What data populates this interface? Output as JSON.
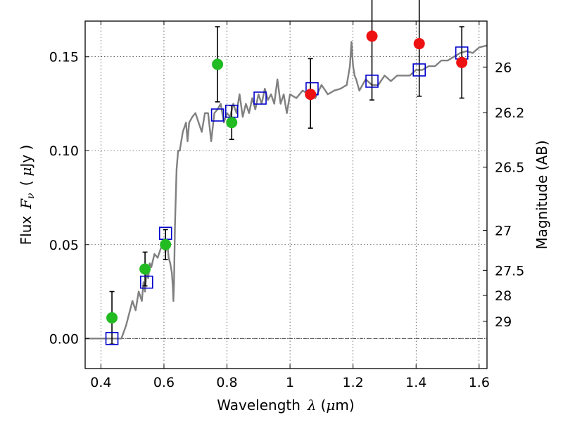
{
  "chart_data": {
    "type": "scatter",
    "title": "",
    "xlabel": {
      "text": "Wavelength",
      "symbol": "λ",
      "unit_open": "(",
      "unit_mu": "μ",
      "unit_rest": "m)"
    },
    "ylabel": {
      "text": "Flux",
      "symbol": "F",
      "subscript": "ν",
      "unit_open": "(",
      "unit_mu": "μ",
      "unit_rest": "Jy )"
    },
    "y2label": "Magnitude (AB)",
    "xlim": [
      0.35,
      1.625
    ],
    "ylim": [
      -0.016,
      0.169
    ],
    "x_ticks": [
      0.4,
      0.6,
      0.8,
      1.0,
      1.2,
      1.4,
      1.6
    ],
    "x_tick_labels": [
      "0.4",
      "0.6",
      "0.8",
      "1",
      "1.2",
      "1.4",
      "1.6"
    ],
    "y_ticks": [
      0.0,
      0.05,
      0.1,
      0.15
    ],
    "y_tick_labels": [
      "0.00",
      "0.05",
      "0.10",
      "0.15"
    ],
    "y2_ticks": [
      {
        "mag": 26,
        "label": "26"
      },
      {
        "mag": 26.2,
        "label": "26.2"
      },
      {
        "mag": 26.5,
        "label": "26.5"
      },
      {
        "mag": 27,
        "label": "27"
      },
      {
        "mag": 27.5,
        "label": "27.5"
      },
      {
        "mag": 28,
        "label": "28"
      },
      {
        "mag": 29,
        "label": "29"
      }
    ],
    "grid": true,
    "zero_line": true,
    "colors": {
      "model_line": "#808080",
      "model_squares": "#0000cc",
      "green_points": "#22bb22",
      "red_points": "#ee1111",
      "errorbar": "#000000"
    },
    "model_spectrum": {
      "x": [
        0.35,
        0.4,
        0.44,
        0.455,
        0.465,
        0.48,
        0.5,
        0.51,
        0.52,
        0.53,
        0.535,
        0.54,
        0.545,
        0.55,
        0.555,
        0.56,
        0.57,
        0.58,
        0.59,
        0.6,
        0.605,
        0.61,
        0.615,
        0.62,
        0.625,
        0.628,
        0.63,
        0.632,
        0.635,
        0.64,
        0.645,
        0.65,
        0.66,
        0.67,
        0.675,
        0.68,
        0.69,
        0.7,
        0.71,
        0.72,
        0.73,
        0.74,
        0.75,
        0.76,
        0.77,
        0.78,
        0.79,
        0.8,
        0.81,
        0.82,
        0.83,
        0.84,
        0.85,
        0.86,
        0.87,
        0.88,
        0.89,
        0.9,
        0.91,
        0.92,
        0.93,
        0.94,
        0.95,
        0.96,
        0.97,
        0.98,
        0.99,
        1.0,
        1.02,
        1.04,
        1.06,
        1.08,
        1.1,
        1.12,
        1.14,
        1.16,
        1.18,
        1.19,
        1.195,
        1.2,
        1.205,
        1.21,
        1.22,
        1.24,
        1.26,
        1.28,
        1.3,
        1.32,
        1.34,
        1.36,
        1.38,
        1.4,
        1.42,
        1.44,
        1.46,
        1.48,
        1.5,
        1.52,
        1.54,
        1.56,
        1.58,
        1.6,
        1.625
      ],
      "y": [
        0.0,
        0.0,
        0.0,
        0.0,
        0.0,
        0.007,
        0.02,
        0.015,
        0.025,
        0.02,
        0.03,
        0.025,
        0.035,
        0.032,
        0.04,
        0.038,
        0.045,
        0.043,
        0.048,
        0.05,
        0.046,
        0.052,
        0.043,
        0.04,
        0.035,
        0.028,
        0.02,
        0.03,
        0.06,
        0.09,
        0.1,
        0.1,
        0.11,
        0.115,
        0.105,
        0.115,
        0.118,
        0.12,
        0.115,
        0.11,
        0.12,
        0.12,
        0.105,
        0.12,
        0.122,
        0.125,
        0.115,
        0.12,
        0.118,
        0.125,
        0.12,
        0.13,
        0.118,
        0.125,
        0.12,
        0.128,
        0.122,
        0.13,
        0.125,
        0.133,
        0.127,
        0.13,
        0.125,
        0.138,
        0.125,
        0.13,
        0.12,
        0.13,
        0.128,
        0.132,
        0.13,
        0.128,
        0.135,
        0.13,
        0.132,
        0.133,
        0.135,
        0.145,
        0.158,
        0.145,
        0.14,
        0.138,
        0.132,
        0.138,
        0.135,
        0.135,
        0.14,
        0.137,
        0.14,
        0.14,
        0.14,
        0.143,
        0.143,
        0.145,
        0.145,
        0.148,
        0.148,
        0.15,
        0.152,
        0.153,
        0.152,
        0.155,
        0.156
      ]
    },
    "series": [
      {
        "marker": "square",
        "points": [
          {
            "x": 0.435,
            "y": 0.0
          },
          {
            "x": 0.545,
            "y": 0.03
          },
          {
            "x": 0.605,
            "y": 0.056
          },
          {
            "x": 0.77,
            "y": 0.119
          },
          {
            "x": 0.815,
            "y": 0.121
          },
          {
            "x": 0.905,
            "y": 0.128
          },
          {
            "x": 1.07,
            "y": 0.133
          },
          {
            "x": 1.26,
            "y": 0.137
          },
          {
            "x": 1.41,
            "y": 0.143
          },
          {
            "x": 1.545,
            "y": 0.152
          }
        ]
      },
      {
        "marker": "circle-green",
        "points": [
          {
            "x": 0.435,
            "y": 0.011,
            "err_lo": 0.014,
            "err_hi": 0.014
          },
          {
            "x": 0.54,
            "y": 0.037,
            "err_lo": 0.009,
            "err_hi": 0.009
          },
          {
            "x": 0.605,
            "y": 0.05,
            "err_lo": 0.008,
            "err_hi": 0.008
          },
          {
            "x": 0.77,
            "y": 0.146,
            "err_lo": 0.02,
            "err_hi": 0.02
          },
          {
            "x": 0.815,
            "y": 0.115,
            "err_lo": 0.009,
            "err_hi": 0.009
          }
        ]
      },
      {
        "marker": "circle-red",
        "points": [
          {
            "x": 1.065,
            "y": 0.13,
            "err_lo": 0.018,
            "err_hi": 0.019
          },
          {
            "x": 1.26,
            "y": 0.161,
            "err_lo": 0.034,
            "err_hi": 0.034
          },
          {
            "x": 1.41,
            "y": 0.157,
            "err_lo": 0.028,
            "err_hi": 0.028
          },
          {
            "x": 1.545,
            "y": 0.147,
            "err_lo": 0.019,
            "err_hi": 0.019
          }
        ]
      }
    ]
  }
}
